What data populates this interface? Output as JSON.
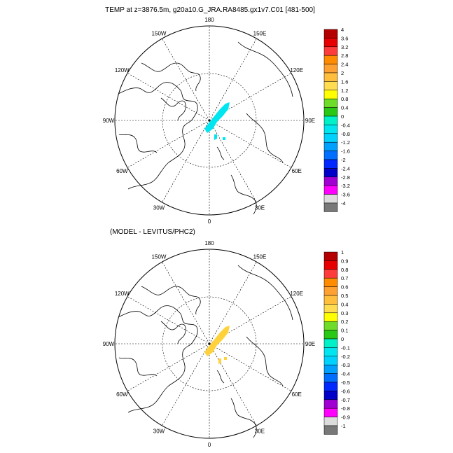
{
  "chart_data": [
    {
      "type": "polar-stereographic-map",
      "title": "TEMP at z=3876.5m, g20a10.G_JRA.RA8485.gx1v7.C01 [481-500]",
      "longitude_labels": [
        "180",
        "150E",
        "120E",
        "90E",
        "60E",
        "30E",
        "0",
        "30W",
        "60W",
        "90W",
        "120W",
        "150W"
      ],
      "colorbar": {
        "levels": [
          "4",
          "3.6",
          "3.2",
          "2.8",
          "2.4",
          "2",
          "1.6",
          "1.2",
          "0.8",
          "0.4",
          "0",
          "-0.4",
          "-0.8",
          "-1.2",
          "-1.6",
          "-2",
          "-2.4",
          "-2.8",
          "-3.2",
          "-3.6",
          "-4"
        ],
        "colors": [
          "#b40000",
          "#e60000",
          "#ff3c3c",
          "#ff8c00",
          "#ffa032",
          "#ffbe3c",
          "#ffdc50",
          "#ffff00",
          "#6edc28",
          "#28c814",
          "#00f0c8",
          "#00e6f0",
          "#00d2ff",
          "#00a0ff",
          "#006eff",
          "#0028ff",
          "#0000c8",
          "#a000d2",
          "#ff00ff",
          "#dcdcdc",
          "#787878"
        ]
      },
      "field_value": "-0.4 to -0.8",
      "field_color": "#00e6f0"
    },
    {
      "type": "polar-stereographic-map",
      "title": "(MODEL - LEVITUS/PHC2)",
      "longitude_labels": [
        "180",
        "150E",
        "120E",
        "90E",
        "60E",
        "30E",
        "0",
        "30W",
        "60W",
        "90W",
        "120W",
        "150W"
      ],
      "colorbar": {
        "levels": [
          "1",
          "0.9",
          "0.8",
          "0.7",
          "0.6",
          "0.5",
          "0.4",
          "0.3",
          "0.2",
          "0.1",
          "0",
          "-0.1",
          "-0.2",
          "-0.3",
          "-0.4",
          "-0.5",
          "-0.6",
          "-0.7",
          "-0.8",
          "-0.9",
          "-1"
        ],
        "colors": [
          "#b40000",
          "#e60000",
          "#ff3c3c",
          "#ff8c00",
          "#ffa032",
          "#ffbe3c",
          "#ffdc50",
          "#ffff00",
          "#6edc28",
          "#28c814",
          "#00f0c8",
          "#00e6f0",
          "#00d2ff",
          "#00a0ff",
          "#006eff",
          "#0028ff",
          "#0000c8",
          "#a000d2",
          "#ff00ff",
          "#dcdcdc",
          "#787878"
        ]
      },
      "field_value": "0.3 to 0.4",
      "field_color": "#ffd23c"
    }
  ]
}
